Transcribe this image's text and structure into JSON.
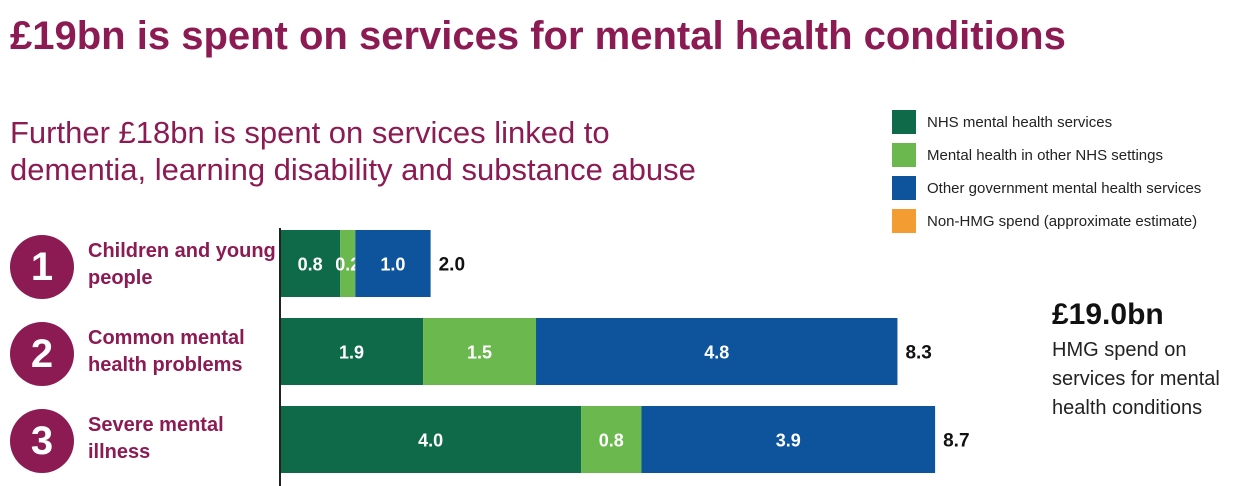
{
  "title": "£19bn is spent on services for mental health conditions",
  "subtitle_lines": [
    "Further £18bn is spent on services linked to",
    "dementia, learning disability and substance abuse"
  ],
  "callout": {
    "amount": "£19.0bn",
    "description": "HMG spend on services for mental health conditions"
  },
  "colors": {
    "brand": "#8c1b54",
    "nhs": "#0f6a4a",
    "other_nhs": "#6ab84e",
    "other_gov": "#0d549c",
    "non_hmg": "#f39c32"
  },
  "chart_data": {
    "type": "bar",
    "orientation": "horizontal",
    "stacked": true,
    "categories": [
      "Children and young people",
      "Common mental health problems",
      "Severe mental illness"
    ],
    "row_numbers": [
      "1",
      "2",
      "3"
    ],
    "series": [
      {
        "name": "NHS mental health services",
        "values": [
          0.8,
          1.9,
          4.0
        ]
      },
      {
        "name": "Mental health in other NHS settings",
        "values": [
          0.2,
          1.5,
          0.8
        ]
      },
      {
        "name": "Other government mental health services",
        "values": [
          1.0,
          4.8,
          3.9
        ]
      },
      {
        "name": "Non-HMG spend (approximate estimate)",
        "values": [
          0,
          0,
          0
        ]
      }
    ],
    "totals": [
      "2.0",
      "8.3",
      "8.7"
    ],
    "segment_labels": [
      [
        "0.8",
        "0.2",
        "1.0"
      ],
      [
        "1.9",
        "1.5",
        "4.8"
      ],
      [
        "4.0",
        "0.8",
        "3.9"
      ]
    ],
    "xlim": [
      0,
      8.7
    ],
    "grid": false,
    "legend_position": "top-right"
  }
}
